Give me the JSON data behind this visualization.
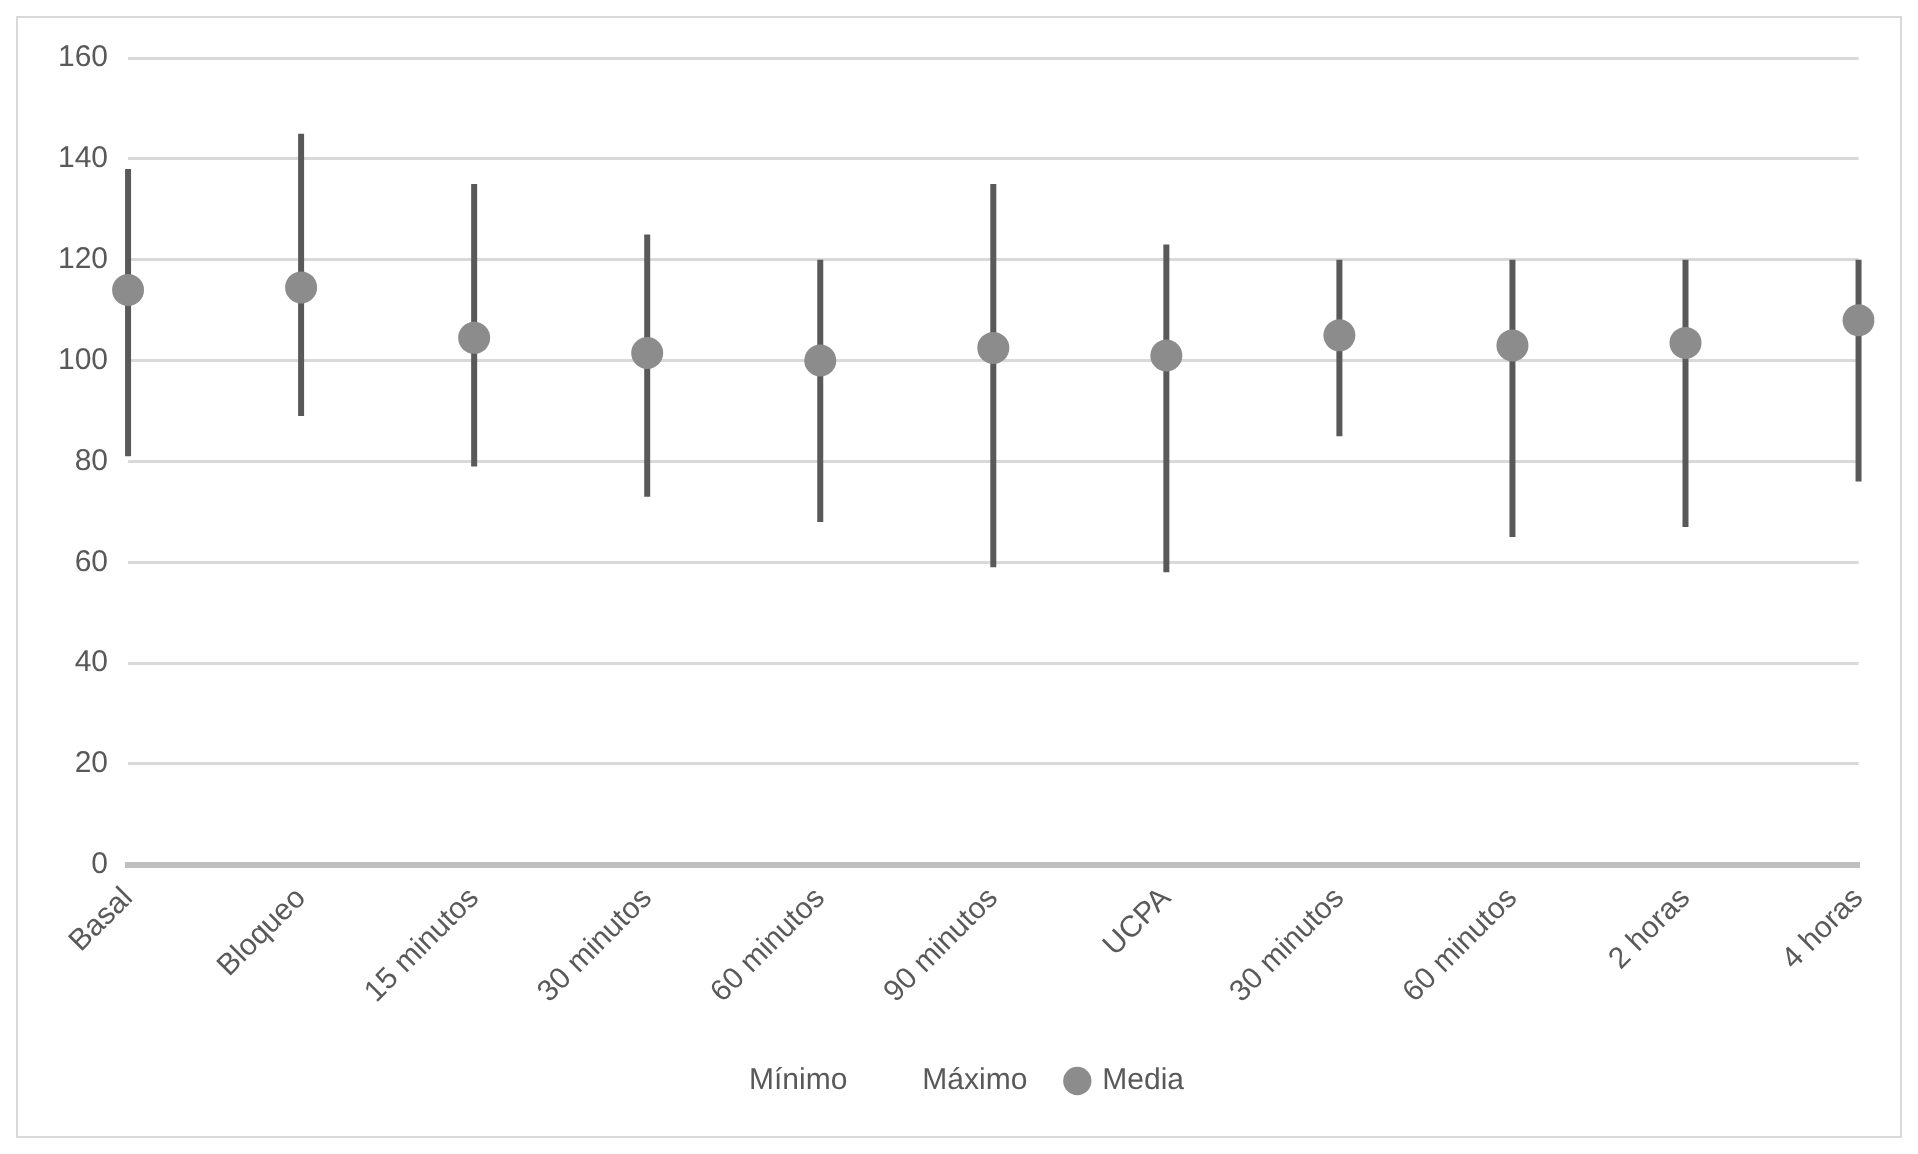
{
  "chart_data": {
    "type": "scatter",
    "categories": [
      "Basal",
      "Bloqueo",
      "15 minutos",
      "30 minutos",
      "60 minutos",
      "90 minutos",
      "UCPA",
      "30 minutos",
      "60 minutos",
      "2 horas",
      "4 horas"
    ],
    "series": [
      {
        "name": "Media",
        "marker": "circle",
        "color": "#8c8c8c",
        "values": [
          114,
          114.5,
          104.5,
          101.5,
          100,
          102.5,
          101,
          105,
          103,
          103.5,
          108
        ],
        "errors": [
          [
            81,
            138
          ],
          [
            89,
            145
          ],
          [
            79,
            135
          ],
          [
            73,
            125
          ],
          [
            68,
            120
          ],
          [
            59,
            135
          ],
          [
            58,
            123
          ],
          [
            85,
            120
          ],
          [
            65,
            120
          ],
          [
            67,
            120
          ],
          [
            76,
            120
          ]
        ]
      }
    ],
    "annotations": [
      "Mínimo",
      "Máximo"
    ],
    "ylim": [
      0,
      160
    ],
    "yticks": [
      0,
      20,
      40,
      60,
      80,
      100,
      120,
      140,
      160
    ],
    "grid": "y",
    "legend": "bottom"
  }
}
